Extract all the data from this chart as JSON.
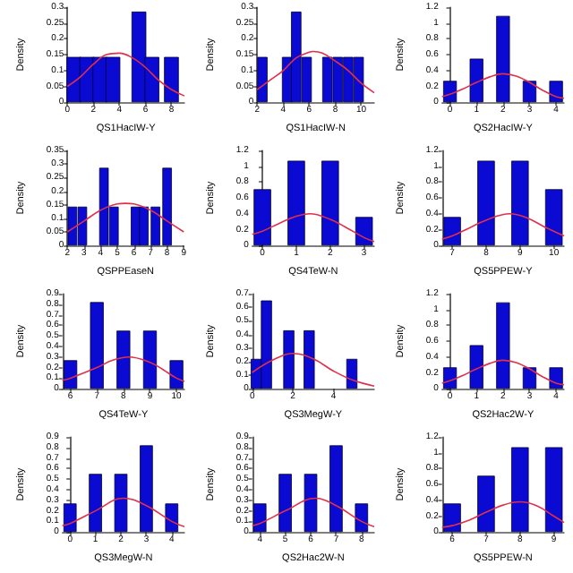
{
  "chart_data": [
    {
      "type": "bar",
      "xlabel": "QS1HacIW-Y",
      "ylabel": "Density",
      "xlim": [
        0,
        9
      ],
      "xticks": [
        0,
        2,
        4,
        6,
        8
      ],
      "ylim": [
        0,
        0.3
      ],
      "yticks": [
        0,
        0.05,
        0.1,
        0.15,
        0.2,
        0.25,
        0.3
      ],
      "marker": "none",
      "grid": false,
      "series": [
        {
          "color": "#0a0ad2",
          "x": [
            0.5,
            1.5,
            2.5,
            3.5,
            5.5,
            6.5,
            8
          ],
          "values": [
            0.143,
            0.143,
            0.143,
            0.143,
            0.286,
            0.143,
            0.143
          ]
        },
        {
          "type": "line",
          "color": "#e0304a",
          "x": [
            0,
            1,
            2,
            3,
            4,
            5,
            6,
            7,
            8,
            9
          ],
          "values": [
            0.05,
            0.08,
            0.12,
            0.15,
            0.155,
            0.14,
            0.11,
            0.07,
            0.04,
            0.02
          ]
        }
      ]
    },
    {
      "type": "bar",
      "xlabel": "QS1HacIW-N",
      "ylabel": "Density",
      "xlim": [
        2,
        11
      ],
      "xticks": [
        2,
        4,
        6,
        8,
        10
      ],
      "ylim": [
        0,
        0.3
      ],
      "yticks": [
        0,
        0.05,
        0.1,
        0.15,
        0.2,
        0.25,
        0.3
      ],
      "marker": "none",
      "grid": false,
      "series": [
        {
          "color": "#0a0ad2",
          "x": [
            2.4,
            4.3,
            5.0,
            5.8,
            7.4,
            8.2,
            9.0,
            9.8
          ],
          "values": [
            0.143,
            0.143,
            0.286,
            0.143,
            0.143,
            0.143,
            0.143,
            0.143
          ]
        },
        {
          "type": "line",
          "color": "#e0304a",
          "x": [
            2,
            3,
            4,
            5,
            6,
            6.3,
            7,
            8,
            9,
            10,
            11
          ],
          "values": [
            0.04,
            0.07,
            0.1,
            0.14,
            0.158,
            0.16,
            0.155,
            0.13,
            0.1,
            0.06,
            0.03
          ]
        }
      ]
    },
    {
      "type": "bar",
      "xlabel": "QS2HacIW-Y",
      "ylabel": "Density",
      "xlim": [
        -0.3,
        4.3
      ],
      "xticks": [
        0,
        1,
        2,
        3,
        4
      ],
      "ylim": [
        0,
        1.2
      ],
      "yticks": [
        0,
        0.2,
        0.4,
        0.6,
        0.8,
        1,
        1.2
      ],
      "marker": "none",
      "grid": false,
      "series": [
        {
          "color": "#0a0ad2",
          "x": [
            0,
            1,
            2,
            3,
            4
          ],
          "values": [
            0.27,
            0.55,
            1.09,
            0.27,
            0.27
          ]
        },
        {
          "type": "line",
          "color": "#e0304a",
          "x": [
            -0.3,
            0,
            0.5,
            1,
            1.5,
            2,
            2.5,
            3,
            3.5,
            4,
            4.3
          ],
          "values": [
            0.07,
            0.1,
            0.17,
            0.25,
            0.32,
            0.36,
            0.33,
            0.25,
            0.15,
            0.07,
            0.05
          ]
        }
      ]
    },
    {
      "type": "bar",
      "xlabel": "QSPPEaseN",
      "ylabel": "Density",
      "xlim": [
        2,
        9
      ],
      "xticks": [
        2,
        3,
        4,
        5,
        6,
        7,
        8,
        9
      ],
      "ylim": [
        0,
        0.35
      ],
      "yticks": [
        0,
        0.05,
        0.1,
        0.15,
        0.2,
        0.25,
        0.3,
        0.35
      ],
      "marker": "none",
      "grid": false,
      "series": [
        {
          "color": "#0a0ad2",
          "x": [
            2.3,
            2.9,
            4.2,
            4.8,
            6.1,
            6.6,
            7.3,
            8.0
          ],
          "values": [
            0.143,
            0.143,
            0.286,
            0.143,
            0.143,
            0.143,
            0.143,
            0.286
          ]
        },
        {
          "type": "line",
          "color": "#e0304a",
          "x": [
            2,
            3,
            4,
            5,
            5.5,
            6,
            7,
            8,
            9
          ],
          "values": [
            0.05,
            0.09,
            0.13,
            0.153,
            0.155,
            0.153,
            0.13,
            0.09,
            0.05
          ]
        }
      ]
    },
    {
      "type": "bar",
      "xlabel": "QS4TeW-N",
      "ylabel": "Density",
      "xlim": [
        -0.3,
        3.3
      ],
      "xticks": [
        0,
        1,
        2,
        3
      ],
      "ylim": [
        0,
        1.2
      ],
      "yticks": [
        0,
        0.2,
        0.4,
        0.6,
        0.8,
        1,
        1.2
      ],
      "marker": "none",
      "grid": false,
      "series": [
        {
          "color": "#0a0ad2",
          "x": [
            0,
            1,
            2,
            3
          ],
          "values": [
            0.71,
            1.07,
            1.07,
            0.36
          ]
        },
        {
          "type": "line",
          "color": "#e0304a",
          "x": [
            -0.3,
            0,
            0.5,
            1,
            1.4,
            2,
            2.5,
            3,
            3.3
          ],
          "values": [
            0.14,
            0.18,
            0.28,
            0.37,
            0.4,
            0.33,
            0.22,
            0.1,
            0.05
          ]
        }
      ]
    },
    {
      "type": "bar",
      "xlabel": "QS5PPEW-Y",
      "ylabel": "Density",
      "xlim": [
        6.7,
        10.3
      ],
      "xticks": [
        7,
        8,
        9,
        10
      ],
      "ylim": [
        0,
        1.2
      ],
      "yticks": [
        0,
        0.2,
        0.4,
        0.6,
        0.8,
        1,
        1.2
      ],
      "marker": "none",
      "grid": false,
      "series": [
        {
          "color": "#0a0ad2",
          "x": [
            7,
            8,
            9,
            10
          ],
          "values": [
            0.36,
            1.07,
            1.07,
            0.71
          ]
        },
        {
          "type": "line",
          "color": "#e0304a",
          "x": [
            6.7,
            7,
            7.5,
            8,
            8.7,
            9.2,
            9.7,
            10.3
          ],
          "values": [
            0.08,
            0.12,
            0.22,
            0.32,
            0.4,
            0.35,
            0.24,
            0.12
          ]
        }
      ]
    },
    {
      "type": "bar",
      "xlabel": "QS4TeW-Y",
      "ylabel": "Density",
      "xlim": [
        5.7,
        10.3
      ],
      "xticks": [
        6,
        7,
        8,
        9,
        10
      ],
      "ylim": [
        0,
        0.9
      ],
      "yticks": [
        0,
        0.1,
        0.2,
        0.3,
        0.4,
        0.5,
        0.6,
        0.7,
        0.8,
        0.9
      ],
      "marker": "none",
      "grid": false,
      "series": [
        {
          "color": "#0a0ad2",
          "x": [
            6,
            7,
            8,
            9,
            10
          ],
          "values": [
            0.27,
            0.82,
            0.55,
            0.55,
            0.27
          ]
        },
        {
          "type": "line",
          "color": "#e0304a",
          "x": [
            5.7,
            6,
            7,
            7.6,
            8.2,
            9,
            9.5,
            10,
            10.3
          ],
          "values": [
            0.08,
            0.1,
            0.2,
            0.27,
            0.3,
            0.25,
            0.18,
            0.1,
            0.07
          ]
        }
      ]
    },
    {
      "type": "bar",
      "xlabel": "QS3MegW-Y",
      "ylabel": "Density",
      "xlim": [
        0,
        6
      ],
      "xticks": [
        0,
        2,
        4
      ],
      "ylim": [
        0,
        0.7
      ],
      "yticks": [
        0,
        0.1,
        0.2,
        0.3,
        0.4,
        0.5,
        0.6,
        0.7
      ],
      "marker": "none",
      "grid": false,
      "series": [
        {
          "color": "#0a0ad2",
          "x": [
            0.2,
            0.7,
            1.8,
            2.8,
            4.9
          ],
          "values": [
            0.22,
            0.65,
            0.43,
            0.43,
            0.22
          ]
        },
        {
          "type": "line",
          "color": "#e0304a",
          "x": [
            0,
            1,
            2,
            3,
            4,
            5,
            6
          ],
          "values": [
            0.12,
            0.21,
            0.26,
            0.22,
            0.13,
            0.06,
            0.02
          ]
        }
      ]
    },
    {
      "type": "bar",
      "xlabel": "QS2Hac2W-Y",
      "ylabel": "Density",
      "xlim": [
        -0.3,
        4.3
      ],
      "xticks": [
        0,
        1,
        2,
        3,
        4
      ],
      "ylim": [
        0,
        1.2
      ],
      "yticks": [
        0,
        0.2,
        0.4,
        0.6,
        0.8,
        1,
        1.2
      ],
      "marker": "none",
      "grid": false,
      "series": [
        {
          "color": "#0a0ad2",
          "x": [
            0,
            1,
            2,
            3,
            4
          ],
          "values": [
            0.27,
            0.55,
            1.09,
            0.27,
            0.27
          ]
        },
        {
          "type": "line",
          "color": "#e0304a",
          "x": [
            -0.3,
            0,
            0.5,
            1,
            1.5,
            2,
            2.5,
            3,
            3.5,
            4,
            4.3
          ],
          "values": [
            0.07,
            0.1,
            0.17,
            0.25,
            0.32,
            0.36,
            0.33,
            0.25,
            0.15,
            0.07,
            0.05
          ]
        }
      ]
    },
    {
      "type": "bar",
      "xlabel": "QS3MegW-N",
      "ylabel": "Density",
      "xlim": [
        -0.3,
        4.5
      ],
      "xticks": [
        0,
        1,
        2,
        3,
        4
      ],
      "ylim": [
        0,
        0.9
      ],
      "yticks": [
        0,
        0.1,
        0.2,
        0.3,
        0.4,
        0.5,
        0.6,
        0.7,
        0.8,
        0.9
      ],
      "marker": "none",
      "grid": false,
      "series": [
        {
          "color": "#0a0ad2",
          "x": [
            0,
            1,
            2,
            3,
            4
          ],
          "values": [
            0.27,
            0.55,
            0.55,
            0.82,
            0.27
          ]
        },
        {
          "type": "line",
          "color": "#e0304a",
          "x": [
            -0.3,
            0,
            1,
            2.1,
            3,
            4,
            4.5
          ],
          "values": [
            0.06,
            0.08,
            0.2,
            0.32,
            0.25,
            0.1,
            0.05
          ]
        }
      ]
    },
    {
      "type": "bar",
      "xlabel": "QS2Hac2W-N",
      "ylabel": "Density",
      "xlim": [
        3.7,
        8.5
      ],
      "xticks": [
        4,
        5,
        6,
        7,
        8
      ],
      "ylim": [
        0,
        0.9
      ],
      "yticks": [
        0,
        0.1,
        0.2,
        0.3,
        0.4,
        0.5,
        0.6,
        0.7,
        0.8,
        0.9
      ],
      "marker": "none",
      "grid": false,
      "series": [
        {
          "color": "#0a0ad2",
          "x": [
            4,
            5,
            6,
            7,
            8
          ],
          "values": [
            0.27,
            0.55,
            0.55,
            0.82,
            0.27
          ]
        },
        {
          "type": "line",
          "color": "#e0304a",
          "x": [
            3.7,
            4,
            5,
            6.2,
            7,
            8,
            8.5
          ],
          "values": [
            0.06,
            0.08,
            0.2,
            0.32,
            0.25,
            0.1,
            0.05
          ]
        }
      ]
    },
    {
      "type": "bar",
      "xlabel": "QS5PPEW-N",
      "ylabel": "Density",
      "xlim": [
        5.7,
        9.3
      ],
      "xticks": [
        6,
        7,
        8,
        9
      ],
      "ylim": [
        0,
        1.2
      ],
      "yticks": [
        0,
        0.2,
        0.4,
        0.6,
        0.8,
        1,
        1.2
      ],
      "marker": "none",
      "grid": false,
      "series": [
        {
          "color": "#0a0ad2",
          "x": [
            6,
            7,
            8,
            9
          ],
          "values": [
            0.36,
            0.71,
            1.07,
            1.07
          ]
        },
        {
          "type": "line",
          "color": "#e0304a",
          "x": [
            5.7,
            6,
            6.5,
            7,
            7.5,
            8,
            8.5,
            9,
            9.3
          ],
          "values": [
            0.06,
            0.08,
            0.15,
            0.25,
            0.34,
            0.38,
            0.33,
            0.2,
            0.12
          ]
        }
      ]
    }
  ]
}
